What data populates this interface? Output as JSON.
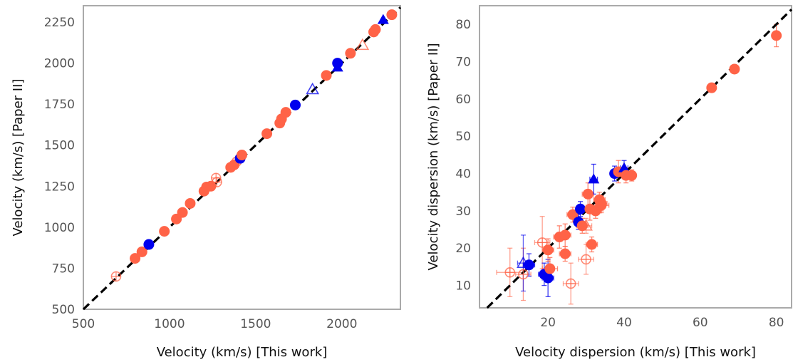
{
  "chart_data": [
    {
      "type": "scatter",
      "xlabel": "Velocity (km/s) [This work]",
      "ylabel": "Velocity (km/s) [Paper II]",
      "xlim": [
        500,
        2340
      ],
      "ylim": [
        500,
        2350
      ],
      "xticks": [
        500,
        1000,
        1500,
        2000
      ],
      "yticks": [
        500,
        750,
        1000,
        1250,
        1500,
        1750,
        2000,
        2250
      ],
      "grid": false,
      "reference_line": "y = x",
      "colors": {
        "orange": "#ff6347",
        "blue": "#0000ee",
        "line": "#000000",
        "spine": "#aaaaaa"
      },
      "points": [
        {
          "x": 690,
          "y": 700,
          "color": "orange",
          "marker": "circle",
          "filled": false
        },
        {
          "x": 800,
          "y": 810,
          "color": "orange",
          "marker": "circle",
          "filled": true
        },
        {
          "x": 840,
          "y": 850,
          "color": "orange",
          "marker": "circle",
          "filled": true
        },
        {
          "x": 880,
          "y": 895,
          "color": "blue",
          "marker": "circle",
          "filled": true
        },
        {
          "x": 970,
          "y": 975,
          "color": "orange",
          "marker": "circle",
          "filled": true
        },
        {
          "x": 1040,
          "y": 1050,
          "color": "orange",
          "marker": "circle",
          "filled": true
        },
        {
          "x": 1075,
          "y": 1090,
          "color": "orange",
          "marker": "circle",
          "filled": true
        },
        {
          "x": 1120,
          "y": 1145,
          "color": "orange",
          "marker": "circle",
          "filled": true
        },
        {
          "x": 1200,
          "y": 1220,
          "color": "orange",
          "marker": "circle",
          "filled": true
        },
        {
          "x": 1215,
          "y": 1245,
          "color": "orange",
          "marker": "circle",
          "filled": true
        },
        {
          "x": 1240,
          "y": 1250,
          "color": "orange",
          "marker": "circle",
          "filled": true
        },
        {
          "x": 1275,
          "y": 1275,
          "color": "orange",
          "marker": "circle",
          "filled": false
        },
        {
          "x": 1270,
          "y": 1300,
          "color": "orange",
          "marker": "circle",
          "filled": false
        },
        {
          "x": 1355,
          "y": 1365,
          "color": "orange",
          "marker": "circle",
          "filled": true
        },
        {
          "x": 1375,
          "y": 1380,
          "color": "orange",
          "marker": "circle",
          "filled": true
        },
        {
          "x": 1390,
          "y": 1400,
          "color": "orange",
          "marker": "circle",
          "filled": false
        },
        {
          "x": 1410,
          "y": 1420,
          "color": "blue",
          "marker": "circle",
          "filled": true
        },
        {
          "x": 1420,
          "y": 1440,
          "color": "orange",
          "marker": "circle",
          "filled": true
        },
        {
          "x": 1565,
          "y": 1570,
          "color": "orange",
          "marker": "circle",
          "filled": true
        },
        {
          "x": 1640,
          "y": 1635,
          "color": "orange",
          "marker": "circle",
          "filled": true
        },
        {
          "x": 1650,
          "y": 1660,
          "color": "orange",
          "marker": "circle",
          "filled": true
        },
        {
          "x": 1675,
          "y": 1700,
          "color": "orange",
          "marker": "circle",
          "filled": true
        },
        {
          "x": 1730,
          "y": 1745,
          "color": "blue",
          "marker": "circle",
          "filled": true
        },
        {
          "x": 1830,
          "y": 1840,
          "color": "blue",
          "marker": "triangle",
          "filled": false
        },
        {
          "x": 1910,
          "y": 1925,
          "color": "orange",
          "marker": "circle",
          "filled": true
        },
        {
          "x": 1975,
          "y": 1975,
          "color": "blue",
          "marker": "triangle",
          "filled": true
        },
        {
          "x": 1975,
          "y": 2000,
          "color": "blue",
          "marker": "circle",
          "filled": true
        },
        {
          "x": 2050,
          "y": 2060,
          "color": "orange",
          "marker": "circle",
          "filled": true
        },
        {
          "x": 2120,
          "y": 2110,
          "color": "orange",
          "marker": "triangle",
          "filled": false
        },
        {
          "x": 2185,
          "y": 2190,
          "color": "orange",
          "marker": "circle",
          "filled": true
        },
        {
          "x": 2195,
          "y": 2205,
          "color": "orange",
          "marker": "circle",
          "filled": true
        },
        {
          "x": 2240,
          "y": 2265,
          "color": "blue",
          "marker": "triangle",
          "filled": true
        },
        {
          "x": 2290,
          "y": 2295,
          "color": "orange",
          "marker": "circle",
          "filled": true
        }
      ]
    },
    {
      "type": "scatter",
      "xlabel": "Velocity dispersion (km/s) [This work]",
      "ylabel": "Velocity dispersion (km/s) [Paper II]",
      "xlim": [
        2,
        84
      ],
      "ylim": [
        4,
        85
      ],
      "xticks": [
        20,
        40,
        60,
        80
      ],
      "yticks": [
        10,
        20,
        30,
        40,
        50,
        60,
        70,
        80
      ],
      "grid": false,
      "reference_line": "y = x",
      "colors": {
        "orange": "#ff6347",
        "blue": "#0000ee",
        "line": "#000000",
        "spine": "#aaaaaa"
      },
      "points": [
        {
          "x": 10,
          "y": 13.5,
          "color": "orange",
          "marker": "circle",
          "filled": false,
          "xerr": 3.5,
          "yerr": 6.5
        },
        {
          "x": 13.5,
          "y": 13,
          "color": "orange",
          "marker": "circle",
          "filled": false,
          "xerr": 2,
          "yerr": 7
        },
        {
          "x": 13.5,
          "y": 16,
          "color": "blue",
          "marker": "triangle",
          "filled": false,
          "xerr": 1.5,
          "yerr": 7.5
        },
        {
          "x": 15,
          "y": 15.5,
          "color": "blue",
          "marker": "circle",
          "filled": true,
          "xerr": 1.5,
          "yerr": 3
        },
        {
          "x": 18.5,
          "y": 21.5,
          "color": "orange",
          "marker": "circle",
          "filled": false,
          "xerr": 2,
          "yerr": 7
        },
        {
          "x": 19,
          "y": 13,
          "color": "blue",
          "marker": "circle",
          "filled": true,
          "xerr": 1.5,
          "yerr": 3
        },
        {
          "x": 20,
          "y": 12,
          "color": "blue",
          "marker": "circle",
          "filled": true,
          "xerr": 1.5,
          "yerr": 5
        },
        {
          "x": 20,
          "y": 19.5,
          "color": "orange",
          "marker": "circle",
          "filled": true,
          "xerr": 1.5,
          "yerr": 3
        },
        {
          "x": 20.5,
          "y": 14.5,
          "color": "orange",
          "marker": "circle",
          "filled": true,
          "xerr": 2,
          "yerr": 3
        },
        {
          "x": 23,
          "y": 23,
          "color": "orange",
          "marker": "circle",
          "filled": true,
          "xerr": 1.5,
          "yerr": 3
        },
        {
          "x": 24.5,
          "y": 23.5,
          "color": "orange",
          "marker": "circle",
          "filled": true,
          "xerr": 1.5,
          "yerr": 3
        },
        {
          "x": 24.5,
          "y": 18.5,
          "color": "orange",
          "marker": "circle",
          "filled": true,
          "xerr": 1.5,
          "yerr": 2
        },
        {
          "x": 26,
          "y": 10.5,
          "color": "orange",
          "marker": "circle",
          "filled": false,
          "xerr": 2,
          "yerr": 5.5
        },
        {
          "x": 26.5,
          "y": 29,
          "color": "orange",
          "marker": "circle",
          "filled": true,
          "xerr": 1.5,
          "yerr": 2
        },
        {
          "x": 28,
          "y": 27,
          "color": "blue",
          "marker": "circle",
          "filled": true,
          "xerr": 1,
          "yerr": 2
        },
        {
          "x": 28.5,
          "y": 30.5,
          "color": "blue",
          "marker": "circle",
          "filled": true,
          "xerr": 1,
          "yerr": 2
        },
        {
          "x": 29,
          "y": 26,
          "color": "orange",
          "marker": "circle",
          "filled": true,
          "xerr": 1.5,
          "yerr": 2
        },
        {
          "x": 30,
          "y": 26,
          "color": "orange",
          "marker": "triangle",
          "filled": false,
          "xerr": 1.5,
          "yerr": 2
        },
        {
          "x": 30,
          "y": 17,
          "color": "orange",
          "marker": "circle",
          "filled": false,
          "xerr": 2,
          "yerr": 4
        },
        {
          "x": 30.5,
          "y": 34.5,
          "color": "orange",
          "marker": "circle",
          "filled": true,
          "xerr": 1.5,
          "yerr": 3
        },
        {
          "x": 31,
          "y": 30.5,
          "color": "orange",
          "marker": "circle",
          "filled": true,
          "xerr": 1.5,
          "yerr": 3
        },
        {
          "x": 31.5,
          "y": 21,
          "color": "orange",
          "marker": "circle",
          "filled": true,
          "xerr": 1.5,
          "yerr": 2
        },
        {
          "x": 32,
          "y": 38.5,
          "color": "blue",
          "marker": "triangle",
          "filled": true,
          "xerr": 1,
          "yerr": 4
        },
        {
          "x": 32.5,
          "y": 30,
          "color": "orange",
          "marker": "circle",
          "filled": true,
          "xerr": 1.5,
          "yerr": 2
        },
        {
          "x": 33.5,
          "y": 33,
          "color": "orange",
          "marker": "circle",
          "filled": true,
          "xerr": 1.5,
          "yerr": 2
        },
        {
          "x": 34,
          "y": 32,
          "color": "orange",
          "marker": "circle",
          "filled": true,
          "xerr": 1.5,
          "yerr": 2
        },
        {
          "x": 34,
          "y": 31.5,
          "color": "orange",
          "marker": "circle",
          "filled": true,
          "xerr": 2,
          "yerr": 2
        },
        {
          "x": 37.5,
          "y": 40,
          "color": "blue",
          "marker": "circle",
          "filled": true,
          "xerr": 1,
          "yerr": 2
        },
        {
          "x": 38.5,
          "y": 40.5,
          "color": "orange",
          "marker": "circle",
          "filled": true,
          "xerr": 1.5,
          "yerr": 3
        },
        {
          "x": 40,
          "y": 41.5,
          "color": "blue",
          "marker": "triangle",
          "filled": true,
          "xerr": 1,
          "yerr": 2
        },
        {
          "x": 40.5,
          "y": 39.5,
          "color": "orange",
          "marker": "circle",
          "filled": true,
          "xerr": 1.5,
          "yerr": 2
        },
        {
          "x": 42,
          "y": 39.5,
          "color": "orange",
          "marker": "circle",
          "filled": true,
          "xerr": 1,
          "yerr": 1.5
        },
        {
          "x": 63,
          "y": 63,
          "color": "orange",
          "marker": "circle",
          "filled": true,
          "xerr": 0,
          "yerr": 0
        },
        {
          "x": 69,
          "y": 68,
          "color": "orange",
          "marker": "circle",
          "filled": true,
          "xerr": 0,
          "yerr": 0
        },
        {
          "x": 80,
          "y": 77,
          "color": "orange",
          "marker": "circle",
          "filled": true,
          "xerr": 0,
          "yerr": 3
        }
      ]
    }
  ]
}
